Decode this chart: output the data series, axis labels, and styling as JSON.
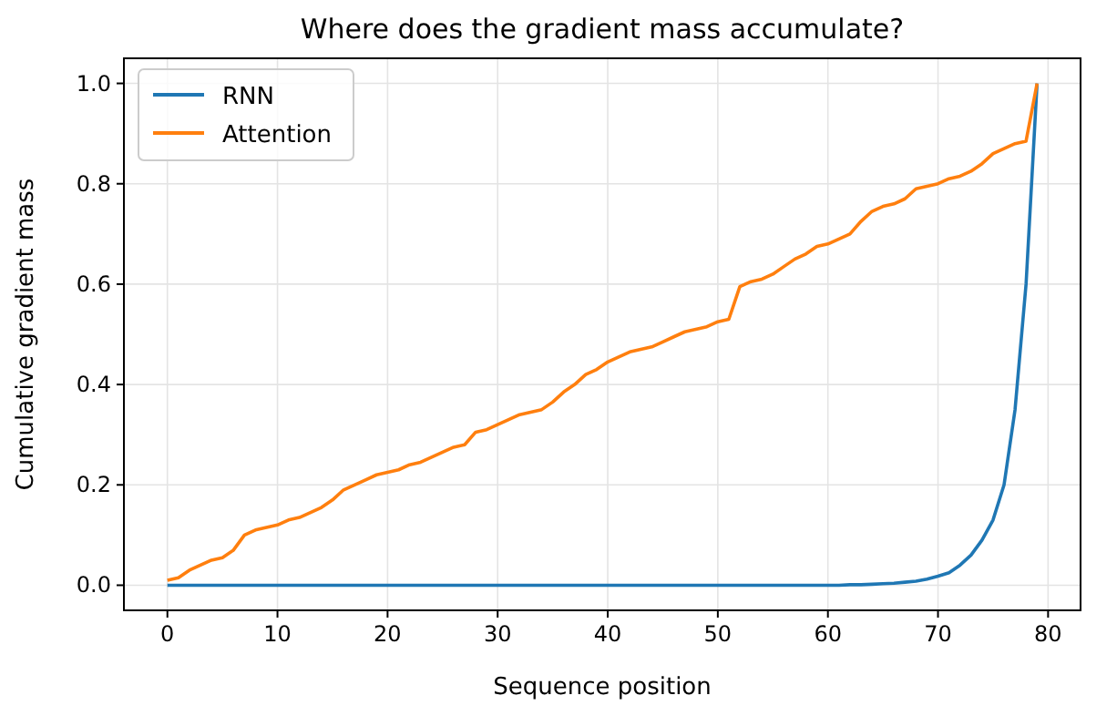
{
  "chart_data": {
    "type": "line",
    "title": "Where does the gradient mass accumulate?",
    "xlabel": "Sequence position",
    "ylabel": "Cumulative gradient mass",
    "x": [
      0,
      1,
      2,
      3,
      4,
      5,
      6,
      7,
      8,
      9,
      10,
      11,
      12,
      13,
      14,
      15,
      16,
      17,
      18,
      19,
      20,
      21,
      22,
      23,
      24,
      25,
      26,
      27,
      28,
      29,
      30,
      31,
      32,
      33,
      34,
      35,
      36,
      37,
      38,
      39,
      40,
      41,
      42,
      43,
      44,
      45,
      46,
      47,
      48,
      49,
      50,
      51,
      52,
      53,
      54,
      55,
      56,
      57,
      58,
      59,
      60,
      61,
      62,
      63,
      64,
      65,
      66,
      67,
      68,
      69,
      70,
      71,
      72,
      73,
      74,
      75,
      76,
      77,
      78,
      79
    ],
    "series": [
      {
        "name": "RNN",
        "color": "#1f77b4",
        "values": [
          0,
          0,
          0,
          0,
          0,
          0,
          0,
          0,
          0,
          0,
          0,
          0,
          0,
          0,
          0,
          0,
          0,
          0,
          0,
          0,
          0,
          0,
          0,
          0,
          0,
          0,
          0,
          0,
          0,
          0,
          0,
          0,
          0,
          0,
          0,
          0,
          0,
          0,
          0,
          0,
          0,
          0,
          0,
          0,
          0,
          0,
          0,
          0,
          0,
          0,
          0,
          0,
          0,
          0,
          0,
          0,
          0,
          0,
          0,
          0,
          0,
          0,
          0.001,
          0.001,
          0.002,
          0.003,
          0.004,
          0.006,
          0.008,
          0.012,
          0.018,
          0.025,
          0.04,
          0.06,
          0.09,
          0.13,
          0.2,
          0.35,
          0.6,
          1.0
        ]
      },
      {
        "name": "Attention",
        "color": "#ff7f0e",
        "values": [
          0.01,
          0.015,
          0.03,
          0.04,
          0.05,
          0.055,
          0.07,
          0.1,
          0.11,
          0.115,
          0.12,
          0.13,
          0.135,
          0.145,
          0.155,
          0.17,
          0.19,
          0.2,
          0.21,
          0.22,
          0.225,
          0.23,
          0.24,
          0.245,
          0.255,
          0.265,
          0.275,
          0.28,
          0.305,
          0.31,
          0.32,
          0.33,
          0.34,
          0.345,
          0.35,
          0.365,
          0.385,
          0.4,
          0.42,
          0.43,
          0.445,
          0.455,
          0.465,
          0.47,
          0.475,
          0.485,
          0.495,
          0.505,
          0.51,
          0.515,
          0.525,
          0.53,
          0.595,
          0.605,
          0.61,
          0.62,
          0.635,
          0.65,
          0.66,
          0.675,
          0.68,
          0.69,
          0.7,
          0.725,
          0.745,
          0.755,
          0.76,
          0.77,
          0.79,
          0.795,
          0.8,
          0.81,
          0.815,
          0.825,
          0.84,
          0.86,
          0.87,
          0.88,
          0.885,
          1.0
        ]
      }
    ],
    "xlim": [
      -3.95,
      82.95
    ],
    "ylim": [
      -0.05,
      1.05
    ],
    "xticks": [
      0,
      10,
      20,
      30,
      40,
      50,
      60,
      70,
      80
    ],
    "yticks": [
      {
        "value": 0,
        "label": "0.0"
      },
      {
        "value": 0.2,
        "label": "0.2"
      },
      {
        "value": 0.4,
        "label": "0.4"
      },
      {
        "value": 0.6,
        "label": "0.6"
      },
      {
        "value": 0.8,
        "label": "0.8"
      },
      {
        "value": 1,
        "label": "1.0"
      }
    ],
    "grid": true,
    "legend": "top left"
  }
}
